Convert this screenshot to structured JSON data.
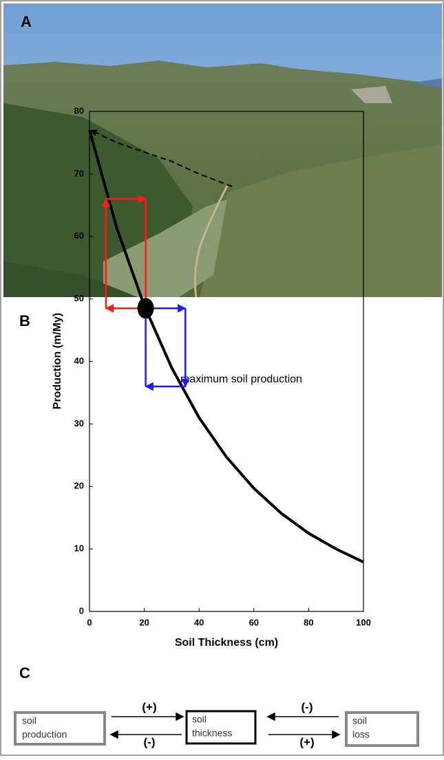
{
  "panels": {
    "a": "A",
    "b": "B",
    "c": "C"
  },
  "chart_data": {
    "type": "line",
    "x": [
      0,
      10,
      20,
      30,
      40,
      50,
      60,
      70,
      80,
      90,
      100
    ],
    "series": [
      {
        "color": "#000000",
        "values": [
          77,
          61.3,
          48.9,
          39,
          31,
          24.7,
          19.7,
          15.7,
          12.5,
          10,
          7.9
        ]
      }
    ],
    "xlim": [
      0,
      100
    ],
    "ylim": [
      0,
      80
    ],
    "xticks": [
      0,
      20,
      40,
      60,
      80,
      100
    ],
    "yticks": [
      0,
      10,
      20,
      30,
      40,
      50,
      60,
      70,
      80
    ],
    "xlabel": "Soil Thickness (cm)",
    "ylabel": "Production (m/My)",
    "max_line": {
      "x": [
        52,
        40,
        30,
        20,
        10,
        0.5
      ],
      "y": [
        68,
        70,
        72,
        73.5,
        75,
        77
      ],
      "label": "maximum soil production"
    },
    "point": {
      "x": 20.5,
      "y": 48.5
    },
    "arrows": [
      {
        "color": "#ff1a1a",
        "x": [
          20.5,
          6,
          6,
          20.5,
          20.5
        ],
        "y": [
          48.5,
          48.5,
          66,
          66,
          48.5
        ]
      },
      {
        "color": "#1a1aff",
        "x": [
          20.5,
          35,
          35,
          20.5,
          20.5
        ],
        "y": [
          48.5,
          48.5,
          36,
          36,
          48.5
        ]
      }
    ]
  },
  "diagram": {
    "boxes": [
      {
        "lines": [
          "soil",
          "production"
        ]
      },
      {
        "lines": [
          "soil",
          "thickness"
        ]
      },
      {
        "lines": [
          "soil",
          "loss"
        ]
      }
    ],
    "links": [
      "(+)",
      "(-)",
      "(-)",
      "(+)"
    ]
  }
}
